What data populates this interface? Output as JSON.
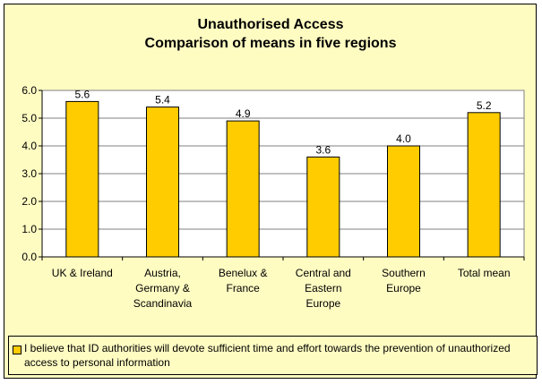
{
  "chart_data": {
    "type": "bar",
    "title_lines": [
      "Unauthorised Access",
      "Comparison of means in five regions"
    ],
    "categories": [
      [
        "UK & Ireland"
      ],
      [
        "Austria,",
        "Germany &",
        "Scandinavia"
      ],
      [
        "Benelux &",
        "France"
      ],
      [
        "Central and",
        "Eastern",
        "Europe"
      ],
      [
        "Southern",
        "Europe"
      ],
      [
        "Total mean"
      ]
    ],
    "values": [
      5.6,
      5.4,
      4.9,
      3.6,
      4.0,
      5.2
    ],
    "data_labels": [
      "5.6",
      "5.4",
      "4.9",
      "3.6",
      "4.0",
      "5.2"
    ],
    "ylim": [
      0,
      6
    ],
    "yticks": [
      "0.0",
      "1.0",
      "2.0",
      "3.0",
      "4.0",
      "5.0",
      "6.0"
    ],
    "xlabel": "",
    "ylabel": "",
    "grid": true,
    "legend_position": "bottom",
    "series": [
      {
        "name": "I believe that ID authorities will devote sufficient time and effort towards the prevention of unauthorized access to personal information",
        "color": "#ffcc00"
      }
    ]
  },
  "colors": {
    "frame_bg": "#fffcc2",
    "plot_bg": "#ffffff",
    "bar_fill": "#ffcc00",
    "gridline": "#808080"
  }
}
